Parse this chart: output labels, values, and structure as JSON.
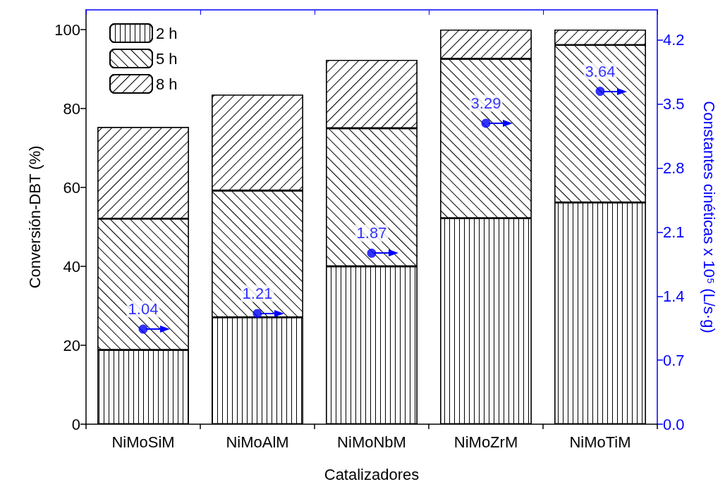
{
  "chart_data": {
    "type": "bar",
    "stacked": true,
    "xlabel": "Catalizadores",
    "ylabel": "Conversión-DBT (%)",
    "y2label": "Constantes cinéticas x 10⁵ (L/s·g)",
    "categories": [
      "NiMoSiM",
      "NiMoAlM",
      "NiMoNbM",
      "NiMoZrM",
      "NiMoTiM"
    ],
    "series": [
      {
        "name": "2 h",
        "color": "#000000",
        "values": [
          18.8,
          27.1,
          40.0,
          52.2,
          56.2
        ]
      },
      {
        "name": "5 h",
        "color": "#000000",
        "values": [
          33.3,
          32.1,
          35.0,
          40.4,
          39.9
        ]
      },
      {
        "name": "8 h",
        "color": "#000000",
        "values": [
          23.2,
          24.3,
          17.3,
          7.4,
          3.9
        ]
      },
      {
        "type": "scatter",
        "axis": "y2",
        "color": "#0000ff",
        "marker": "circle",
        "data_labels": true,
        "x": [
          "NiMoSiM",
          "NiMoAlM",
          "NiMoNbM",
          "NiMoZrM",
          "NiMoTiM"
        ],
        "values": [
          1.04,
          1.21,
          1.87,
          3.29,
          3.64
        ]
      }
    ],
    "ylim": [
      0,
      105
    ],
    "yticks": [
      0,
      20,
      40,
      60,
      80,
      100
    ],
    "y2lim": [
      0,
      4.53
    ],
    "y2ticks": [
      {
        "value": 0,
        "label": "0.0"
      },
      0.7,
      1.4,
      2.1,
      2.8,
      3.5,
      4.2
    ],
    "grid": false,
    "legend": "top left"
  }
}
